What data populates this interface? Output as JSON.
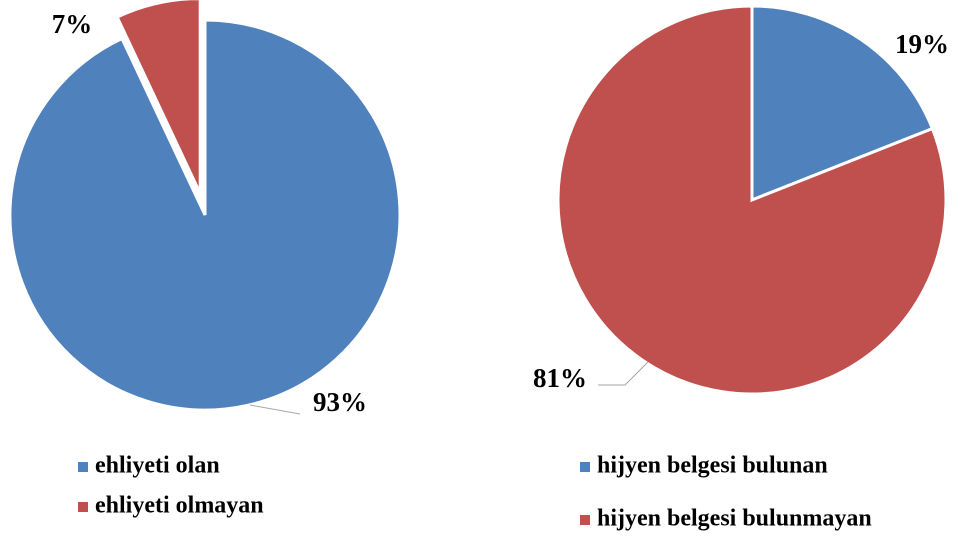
{
  "chart_data": [
    {
      "type": "pie",
      "categories": [
        "ehliyeti olan",
        "ehliyeti olmayan"
      ],
      "values": [
        93,
        7
      ],
      "value_labels": [
        "93%",
        "7%"
      ],
      "colors": [
        "#4F81BD",
        "#C0504D"
      ],
      "exploded": [
        false,
        true
      ]
    },
    {
      "type": "pie",
      "categories": [
        "hijyen belgesi bulunan",
        "hijyen belgesi bulunmayan"
      ],
      "values": [
        19,
        81
      ],
      "value_labels": [
        "19%",
        "81%"
      ],
      "colors": [
        "#4F81BD",
        "#C0504D"
      ],
      "exploded": [
        false,
        false
      ]
    }
  ]
}
